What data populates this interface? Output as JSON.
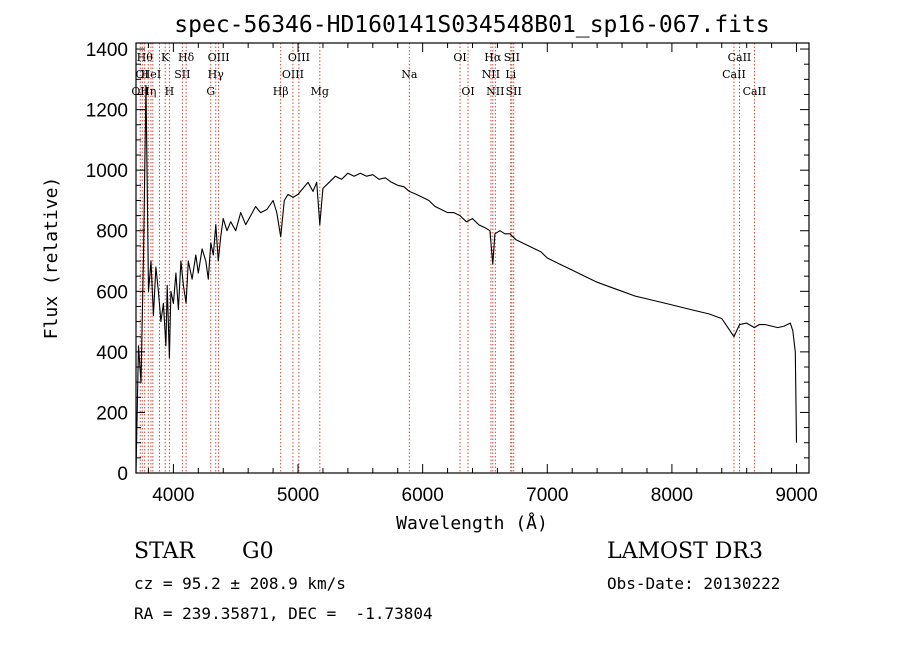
{
  "chart_data": {
    "type": "line",
    "title": "spec-56346-HD160141S034548B01_sp16-067.fits",
    "xlabel": "Wavelength (Å)",
    "ylabel": "Flux (relative)",
    "xlim": [
      3700,
      9100
    ],
    "ylim": [
      0,
      1420
    ],
    "xticks": [
      4000,
      5000,
      6000,
      7000,
      8000,
      9000
    ],
    "yticks": [
      0,
      200,
      400,
      600,
      800,
      1000,
      1200,
      1400
    ],
    "series": [
      {
        "name": "flux",
        "x": [
          3700,
          3720,
          3740,
          3760,
          3780,
          3800,
          3820,
          3840,
          3860,
          3880,
          3900,
          3920,
          3940,
          3950,
          3968,
          3980,
          4000,
          4020,
          4040,
          4060,
          4080,
          4102,
          4120,
          4150,
          4180,
          4200,
          4230,
          4260,
          4280,
          4300,
          4320,
          4340,
          4360,
          4380,
          4400,
          4430,
          4460,
          4500,
          4540,
          4580,
          4620,
          4660,
          4700,
          4750,
          4800,
          4830,
          4861,
          4890,
          4920,
          4960,
          5000,
          5040,
          5080,
          5120,
          5150,
          5175,
          5200,
          5250,
          5300,
          5350,
          5400,
          5450,
          5500,
          5550,
          5600,
          5650,
          5700,
          5750,
          5800,
          5850,
          5893,
          5950,
          6000,
          6050,
          6100,
          6150,
          6200,
          6250,
          6300,
          6350,
          6400,
          6450,
          6500,
          6540,
          6563,
          6580,
          6620,
          6660,
          6700,
          6750,
          6800,
          6850,
          6900,
          6950,
          7000,
          7100,
          7200,
          7300,
          7400,
          7500,
          7600,
          7700,
          7800,
          7900,
          8000,
          8100,
          8200,
          8300,
          8400,
          8498,
          8542,
          8600,
          8662,
          8700,
          8750,
          8800,
          8850,
          8900,
          8950,
          8970,
          8990,
          9000
        ],
        "y": [
          0,
          420,
          300,
          720,
          1280,
          600,
          700,
          520,
          680,
          600,
          500,
          560,
          420,
          620,
          380,
          600,
          560,
          660,
          540,
          700,
          620,
          560,
          700,
          640,
          720,
          660,
          740,
          700,
          640,
          760,
          720,
          820,
          700,
          780,
          840,
          800,
          830,
          800,
          860,
          820,
          850,
          880,
          860,
          870,
          900,
          860,
          780,
          900,
          920,
          910,
          920,
          940,
          960,
          930,
          960,
          820,
          940,
          960,
          980,
          970,
          990,
          980,
          990,
          980,
          985,
          970,
          975,
          960,
          950,
          945,
          930,
          920,
          910,
          900,
          880,
          870,
          860,
          860,
          850,
          830,
          840,
          820,
          810,
          800,
          690,
          790,
          800,
          790,
          790,
          770,
          760,
          750,
          740,
          730,
          710,
          690,
          670,
          650,
          630,
          615,
          600,
          585,
          575,
          565,
          555,
          545,
          535,
          525,
          510,
          450,
          490,
          495,
          480,
          490,
          490,
          485,
          480,
          485,
          495,
          470,
          400,
          100
        ]
      }
    ],
    "lines": [
      {
        "wl": 3734,
        "label": "OII",
        "row": 2
      },
      {
        "wl": 3750,
        "label": "OI",
        "row": 1
      },
      {
        "wl": 3770,
        "label": "Hθ",
        "row": 0
      },
      {
        "wl": 3798,
        "label": "Hη",
        "row": 2
      },
      {
        "wl": 3820,
        "label": "HeI",
        "row": 1
      },
      {
        "wl": 3835,
        "label": "",
        "row": 0
      },
      {
        "wl": 3889,
        "label": "",
        "row": 0
      },
      {
        "wl": 3934,
        "label": "K",
        "row": 0
      },
      {
        "wl": 3968,
        "label": "H",
        "row": 2
      },
      {
        "wl": 4072,
        "label": "SII",
        "row": 1
      },
      {
        "wl": 4102,
        "label": "Hδ",
        "row": 0
      },
      {
        "wl": 4300,
        "label": "G",
        "row": 2
      },
      {
        "wl": 4340,
        "label": "Hγ",
        "row": 1
      },
      {
        "wl": 4363,
        "label": "OIII",
        "row": 0
      },
      {
        "wl": 4861,
        "label": "Hβ",
        "row": 2
      },
      {
        "wl": 4959,
        "label": "OIII",
        "row": 1
      },
      {
        "wl": 5007,
        "label": "OIII",
        "row": 0
      },
      {
        "wl": 5175,
        "label": "Mg",
        "row": 2
      },
      {
        "wl": 5893,
        "label": "Na",
        "row": 1
      },
      {
        "wl": 6300,
        "label": "OI",
        "row": 0
      },
      {
        "wl": 6364,
        "label": "OI",
        "row": 2
      },
      {
        "wl": 6548,
        "label": "NII",
        "row": 1
      },
      {
        "wl": 6563,
        "label": "Hα",
        "row": 0
      },
      {
        "wl": 6583,
        "label": "NII",
        "row": 2
      },
      {
        "wl": 6707,
        "label": "Li",
        "row": 1
      },
      {
        "wl": 6716,
        "label": "SII",
        "row": 0
      },
      {
        "wl": 6731,
        "label": "SII",
        "row": 2
      },
      {
        "wl": 8498,
        "label": "CaII",
        "row": 1
      },
      {
        "wl": 8542,
        "label": "CaII",
        "row": 0
      },
      {
        "wl": 8662,
        "label": "CaII",
        "row": 2
      }
    ]
  },
  "info": {
    "object_class": "STAR",
    "subclass": "G0",
    "redshift_line": "cz = 95.2 ± 208.9 km/s",
    "coords_line": "RA = 239.35871, DEC =  -1.73804",
    "survey": "LAMOST DR3",
    "obs_date_line": "Obs-Date: 20130222"
  },
  "colors": {
    "spectrum": "#000000",
    "line_marker": "#c0392b",
    "axes": "#000000"
  }
}
